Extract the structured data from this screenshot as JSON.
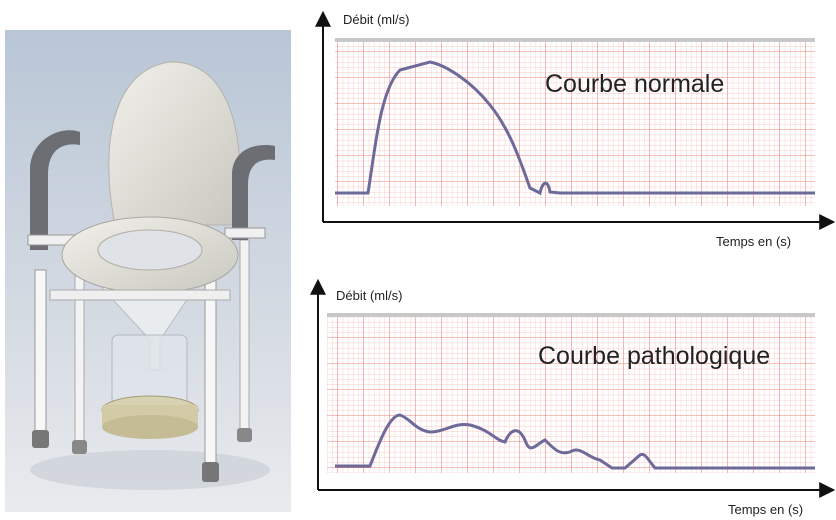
{
  "top_graph": {
    "y_label": "Débit (ml/s)",
    "title": "Courbe normale",
    "x_label": "Temps en (s)"
  },
  "bottom_graph": {
    "y_label": "Débit (ml/s)",
    "title": "Courbe pathologique",
    "x_label": "Temps en (s)"
  }
}
